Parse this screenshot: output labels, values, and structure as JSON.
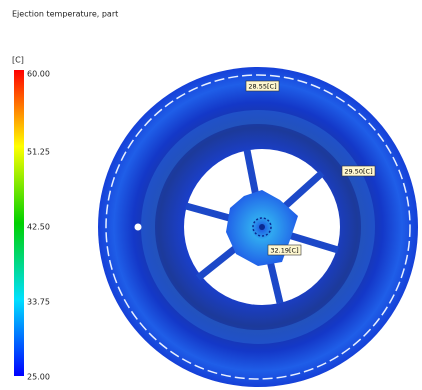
{
  "title": "Ejection temperature, part",
  "legend": {
    "unit": "[C]",
    "ticks": [
      "60.00",
      "51.25",
      "42.50",
      "33.75",
      "25.00"
    ]
  },
  "annotations": [
    "28.55[C]",
    "29.50[C]",
    "32.19[C]"
  ]
}
